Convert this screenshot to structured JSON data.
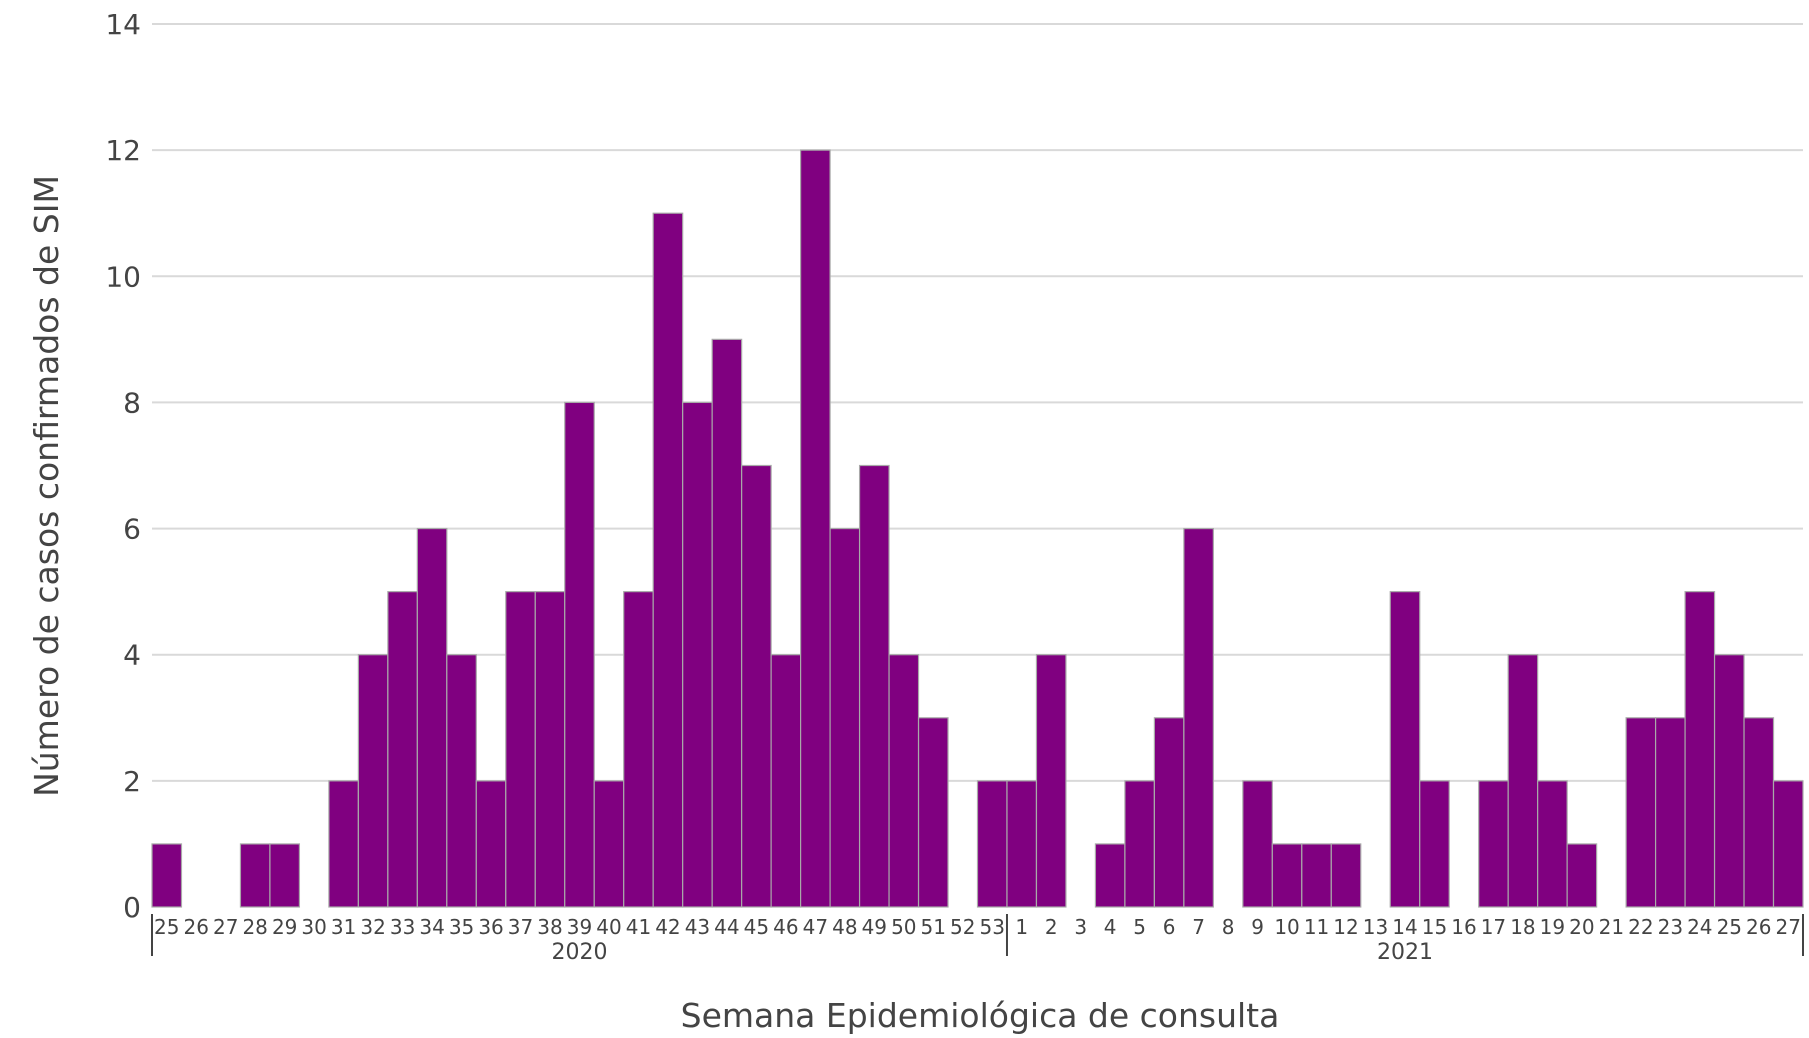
{
  "chart_data": {
    "type": "bar",
    "title": "",
    "xlabel": "Semana Epidemiológica de consulta",
    "ylabel": "Número de casos confirmados de SIM",
    "ylim": [
      0,
      14
    ],
    "yticks": [
      0,
      2,
      4,
      6,
      8,
      10,
      12,
      14
    ],
    "grid": true,
    "legend": "none",
    "bar_color": "#800080",
    "groups": [
      {
        "label": "2020",
        "categories": [
          "25",
          "26",
          "27",
          "28",
          "29",
          "30",
          "31",
          "32",
          "33",
          "34",
          "35",
          "36",
          "37",
          "38",
          "39",
          "40",
          "41",
          "42",
          "43",
          "44",
          "45",
          "46",
          "47",
          "48",
          "49",
          "50",
          "51",
          "52",
          "53"
        ],
        "values": [
          1,
          0,
          0,
          1,
          1,
          0,
          2,
          4,
          5,
          6,
          4,
          2,
          5,
          5,
          8,
          2,
          5,
          11,
          8,
          9,
          7,
          4,
          12,
          6,
          7,
          4,
          3,
          0,
          2
        ]
      },
      {
        "label": "2021",
        "categories": [
          "1",
          "2",
          "3",
          "4",
          "5",
          "6",
          "7",
          "8",
          "9",
          "10",
          "11",
          "12",
          "13",
          "14",
          "15",
          "16",
          "17",
          "18",
          "19",
          "20",
          "21",
          "22",
          "23",
          "24",
          "25",
          "26",
          "27"
        ],
        "values": [
          2,
          4,
          0,
          1,
          2,
          3,
          6,
          0,
          2,
          1,
          1,
          1,
          0,
          5,
          2,
          0,
          2,
          4,
          2,
          1,
          0,
          3,
          3,
          5,
          4,
          3,
          2
        ]
      }
    ]
  }
}
